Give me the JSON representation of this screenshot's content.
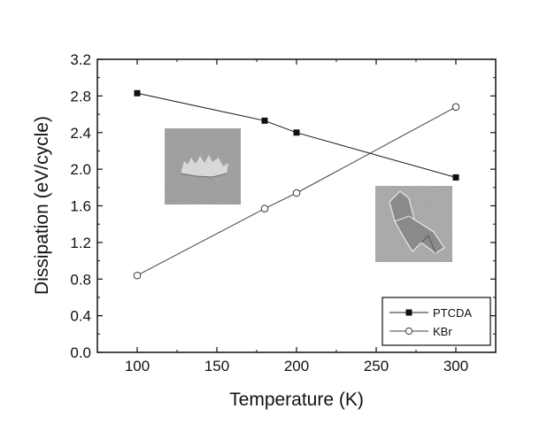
{
  "chart_data": {
    "type": "line",
    "title": "",
    "xlabel": "Temperature (K)",
    "ylabel": "Dissipation (eV/cycle)",
    "xlim": [
      75,
      325
    ],
    "ylim": [
      0.0,
      3.2
    ],
    "xticks": [
      100,
      150,
      200,
      250,
      300
    ],
    "yticks": [
      0.0,
      0.4,
      0.8,
      1.2,
      1.6,
      2.0,
      2.4,
      2.8,
      3.2
    ],
    "xtick_labels": [
      "100",
      "150",
      "200",
      "250",
      "300"
    ],
    "ytick_labels": [
      "0.0",
      "0.4",
      "0.8",
      "1.2",
      "1.6",
      "2.0",
      "2.4",
      "2.8",
      "3.2"
    ],
    "grid": false,
    "legend_position": "bottom-right",
    "series": [
      {
        "name": "PTCDA",
        "marker": "filled-square",
        "color": "#111111",
        "x": [
          100,
          180,
          200,
          300
        ],
        "y": [
          2.83,
          2.53,
          2.4,
          1.91
        ]
      },
      {
        "name": "KBr",
        "marker": "open-circle",
        "color": "#444444",
        "x": [
          100,
          180,
          200,
          300
        ],
        "y": [
          0.84,
          1.57,
          1.74,
          2.68
        ]
      }
    ],
    "insets": [
      {
        "name": "ptcda-island-image",
        "depicts": "grayscale microscopy image of a PTCDA island"
      },
      {
        "name": "kbr-crystal-image",
        "depicts": "grayscale microscopy image of a KBr crystal edge"
      }
    ]
  }
}
